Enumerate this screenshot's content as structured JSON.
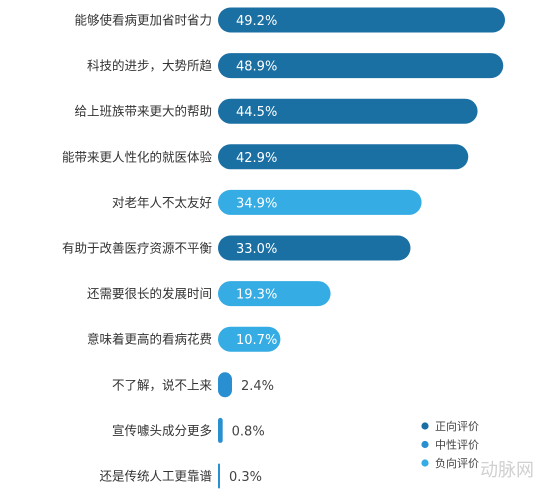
{
  "chart_data": {
    "type": "bar",
    "orientation": "horizontal",
    "title": "",
    "xlabel": "",
    "ylabel": "",
    "xlim": [
      0,
      50
    ],
    "grid": false,
    "legend_position": "bottom-right",
    "value_suffix": "%",
    "categories": [
      "能够使看病更加省时省力",
      "科技的进步，大势所趋",
      "给上班族带来更大的帮助",
      "能带来更人性化的就医体验",
      "对老年人不太友好",
      "有助于改善医疗资源不平衡",
      "还需要很长的发展时间",
      "意味着更高的看病花费",
      "不了解，说不上来",
      "宣传噱头成分更多",
      "还是传统人工更靠谱"
    ],
    "values": [
      49.2,
      48.9,
      44.5,
      42.9,
      34.9,
      33.0,
      19.3,
      10.7,
      2.4,
      0.8,
      0.3
    ],
    "value_labels": [
      "49.2%",
      "48.9%",
      "44.5%",
      "42.9%",
      "34.9%",
      "33.0%",
      "19.3%",
      "10.7%",
      "2.4%",
      "0.8%",
      "0.3%"
    ],
    "sentiment": [
      "positive",
      "positive",
      "positive",
      "positive",
      "negative",
      "positive",
      "negative",
      "negative",
      "neutral",
      "neutral",
      "neutral"
    ],
    "legend": [
      {
        "key": "positive",
        "label": "正向评价",
        "color": "#1a6fa3"
      },
      {
        "key": "neutral",
        "label": "中性评价",
        "color": "#2a8fd0"
      },
      {
        "key": "negative",
        "label": "负向评价",
        "color": "#35ace3"
      }
    ]
  },
  "watermark": "动脉网"
}
